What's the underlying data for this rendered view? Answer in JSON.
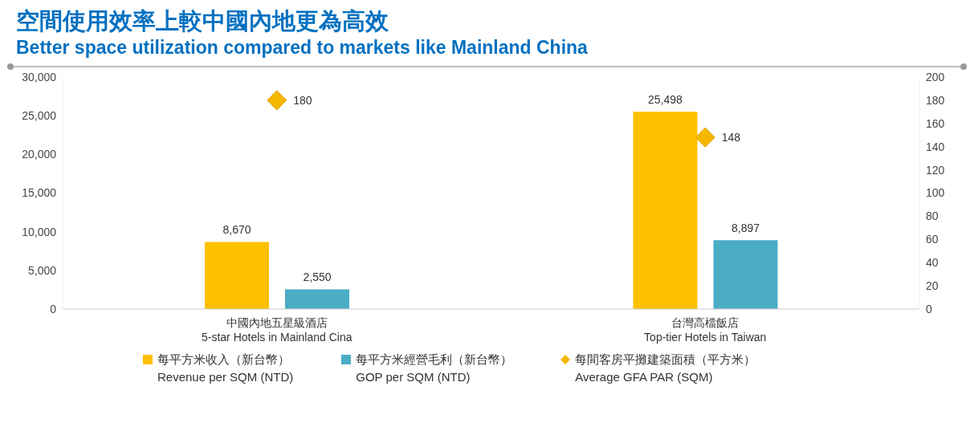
{
  "chart_data": {
    "type": "bar",
    "title": "空間使用效率上較中國內地更為高效",
    "subtitle": "Better space utilization compared to markets like Mainland China",
    "categories": [
      "中國內地五星級酒店\n5-star Hotels in Mainland Cina",
      "台灣高檔飯店\nTop-tier Hotels in Taiwan"
    ],
    "series": [
      {
        "name": "每平方米收入（新台幣）\nRevenue per SQM (NTD)",
        "color": "#ffc000",
        "values": [
          8670,
          25498
        ],
        "value_labels": [
          "8,670",
          "25,498"
        ]
      },
      {
        "name": "每平方米經營毛利（新台幣）\nGOP per SQM (NTD)",
        "color": "#4bacc6",
        "values": [
          2550,
          8897
        ],
        "value_labels": [
          "2,550",
          "8,897"
        ]
      },
      {
        "name": "每間客房平攤建築面積（平方米）\nAverage GFA PAR (SQM)",
        "type": "scatter",
        "marker": "diamond",
        "axis": "y2",
        "color": "#f5b800",
        "values": [
          180,
          148
        ],
        "value_labels": [
          "180",
          "148"
        ]
      }
    ],
    "ylim": [
      0,
      30000
    ],
    "yticks": [
      {
        "value": 0,
        "label": "0"
      },
      {
        "value": 5000,
        "label": "5,000"
      },
      {
        "value": 10000,
        "label": "10,000"
      },
      {
        "value": 15000,
        "label": "15,000"
      },
      {
        "value": 20000,
        "label": "20,000"
      },
      {
        "value": 25000,
        "label": "25,000"
      },
      {
        "value": 30000,
        "label": "30,000"
      }
    ],
    "y2lim": [
      0,
      200
    ],
    "y2ticks": [
      0,
      20,
      40,
      60,
      80,
      100,
      120,
      140,
      160,
      180,
      200
    ],
    "grid": false,
    "legend": "bottom"
  }
}
